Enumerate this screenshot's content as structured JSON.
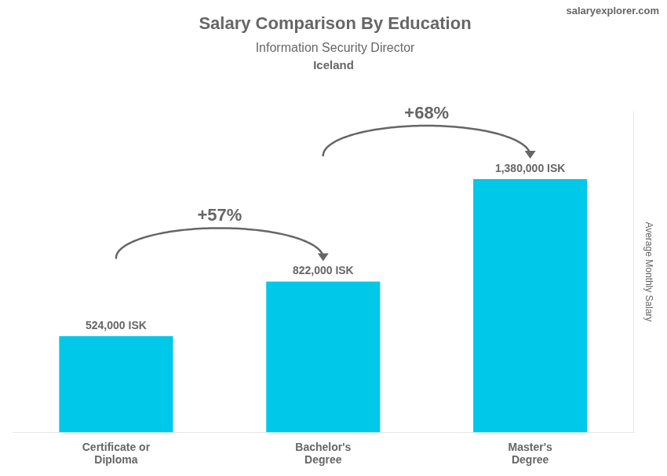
{
  "chart_data": {
    "type": "bar",
    "title": "Salary Comparison By Education",
    "subtitle": "Information Security Director",
    "ylabel": "Average Monthly Salary",
    "categories": [
      "Certificate or\nDiploma",
      "Bachelor's\nDegree",
      "Master's\nDegree"
    ],
    "values": [
      524000,
      822000,
      1380000
    ],
    "value_labels": [
      "524,000 ISK",
      "822,000 ISK",
      "1,380,000 ISK"
    ],
    "data_labels": true,
    "color": "#00c8e8",
    "ylim": [
      0,
      1750000
    ],
    "grid": false,
    "tick_labels": "x",
    "annotations": [
      {
        "text": "+57%",
        "from": "Certificate or\nDiploma",
        "to": "Bachelor's\nDegree"
      },
      {
        "text": "+68%",
        "from": "Bachelor's\nDegree",
        "to": "Master's\nDegree"
      },
      {
        "text": "Iceland"
      },
      {
        "text": "salaryexplorer.com"
      }
    ]
  }
}
